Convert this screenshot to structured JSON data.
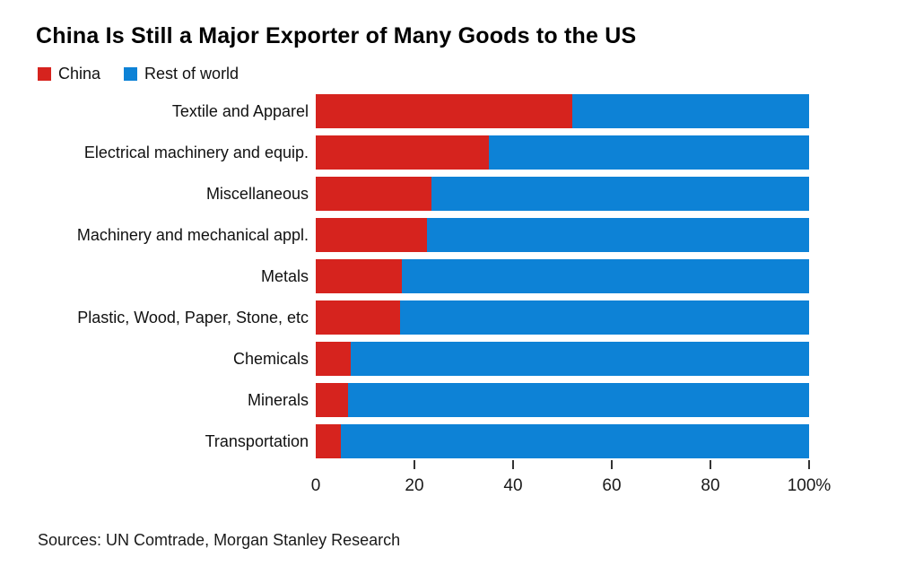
{
  "header": {
    "title": "China Is Still a Major Exporter of Many Goods to the US"
  },
  "legend": [
    {
      "label": "China",
      "color": "#d6231e"
    },
    {
      "label": "Rest of world",
      "color": "#0d82d6"
    }
  ],
  "footer": {
    "source": "Sources: UN Comtrade, Morgan Stanley Research"
  },
  "chart_data": {
    "type": "bar",
    "orientation": "horizontal",
    "stacked": true,
    "stack_total": 100,
    "title": "China Is Still a Major Exporter of Many Goods to the US",
    "categories": [
      "Textile and Apparel",
      "Electrical machinery and equip.",
      "Miscellaneous",
      "Machinery and mechanical appl.",
      "Metals",
      "Plastic, Wood, Paper, Stone, etc",
      "Chemicals",
      "Minerals",
      "Transportation"
    ],
    "series": [
      {
        "name": "China",
        "color": "#d6231e",
        "values": [
          52,
          35,
          23.5,
          22.5,
          17.5,
          17,
          7,
          6.5,
          5
        ]
      },
      {
        "name": "Rest of world",
        "color": "#0d82d6",
        "values": [
          48,
          65,
          76.5,
          77.5,
          82.5,
          83,
          93,
          93.5,
          95
        ]
      }
    ],
    "xlabel": "",
    "ylabel": "",
    "x_axis": {
      "range": [
        0,
        100
      ],
      "tick_values": [
        0,
        20,
        40,
        60,
        80,
        100
      ],
      "tick_labels": [
        "0",
        "20",
        "40",
        "60",
        "80",
        "100%"
      ]
    },
    "grid": false,
    "legend_position": "top-left",
    "source": "Sources: UN Comtrade, Morgan Stanley Research"
  }
}
